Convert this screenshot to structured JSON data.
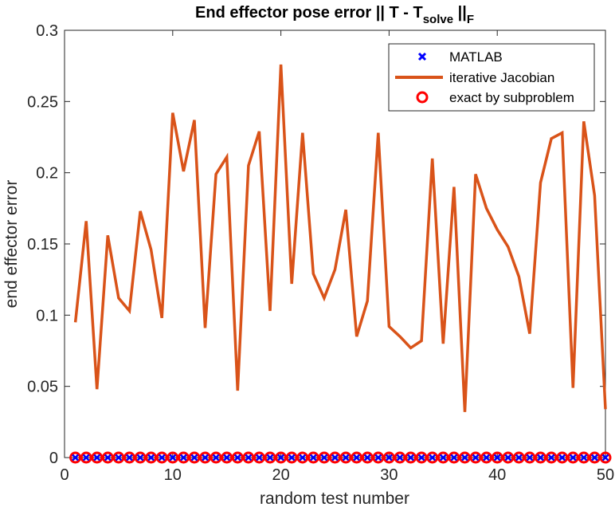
{
  "chart_data": {
    "type": "line",
    "title": {
      "main": "End effector pose error || T - T",
      "sub": "solve",
      "tail": " ||",
      "sub2": "F"
    },
    "xlabel": "random test number",
    "ylabel": "end effector error",
    "xlim": [
      0,
      50
    ],
    "ylim": [
      0,
      0.3
    ],
    "xticks": [
      "0",
      "10",
      "20",
      "30",
      "40",
      "50"
    ],
    "yticks": [
      "0",
      "0.05",
      "0.1",
      "0.15",
      "0.2",
      "0.25",
      "0.3"
    ],
    "legend_position": "top-right",
    "x": [
      1,
      2,
      3,
      4,
      5,
      6,
      7,
      8,
      9,
      10,
      11,
      12,
      13,
      14,
      15,
      16,
      17,
      18,
      19,
      20,
      21,
      22,
      23,
      24,
      25,
      26,
      27,
      28,
      29,
      30,
      31,
      32,
      33,
      34,
      35,
      36,
      37,
      38,
      39,
      40,
      41,
      42,
      43,
      44,
      45,
      46,
      47,
      48,
      49,
      50
    ],
    "series": [
      {
        "name": "MATLAB",
        "style": "marker-x",
        "color": "#0000ff",
        "values": [
          0,
          0,
          0,
          0,
          0,
          0,
          0,
          0,
          0,
          0,
          0,
          0,
          0,
          0,
          0,
          0,
          0,
          0,
          0,
          0,
          0,
          0,
          0,
          0,
          0,
          0,
          0,
          0,
          0,
          0,
          0,
          0,
          0,
          0,
          0,
          0,
          0,
          0,
          0,
          0,
          0,
          0,
          0,
          0,
          0,
          0,
          0,
          0,
          0,
          0
        ]
      },
      {
        "name": "iterative Jacobian",
        "style": "line",
        "color": "#d95319",
        "values": [
          0.095,
          0.166,
          0.048,
          0.156,
          0.112,
          0.103,
          0.173,
          0.146,
          0.098,
          0.242,
          0.201,
          0.237,
          0.091,
          0.199,
          0.211,
          0.047,
          0.205,
          0.229,
          0.103,
          0.276,
          0.122,
          0.228,
          0.129,
          0.112,
          0.132,
          0.174,
          0.085,
          0.11,
          0.228,
          0.092,
          0.085,
          0.077,
          0.082,
          0.21,
          0.08,
          0.19,
          0.032,
          0.199,
          0.175,
          0.16,
          0.148,
          0.127,
          0.087,
          0.193,
          0.224,
          0.228,
          0.049,
          0.236,
          0.184,
          0.034
        ]
      },
      {
        "name": "exact by subproblem",
        "style": "marker-circle",
        "color": "#ff0000",
        "values": [
          0,
          0,
          0,
          0,
          0,
          0,
          0,
          0,
          0,
          0,
          0,
          0,
          0,
          0,
          0,
          0,
          0,
          0,
          0,
          0,
          0,
          0,
          0,
          0,
          0,
          0,
          0,
          0,
          0,
          0,
          0,
          0,
          0,
          0,
          0,
          0,
          0,
          0,
          0,
          0,
          0,
          0,
          0,
          0,
          0,
          0,
          0,
          0,
          0,
          0
        ]
      }
    ]
  }
}
